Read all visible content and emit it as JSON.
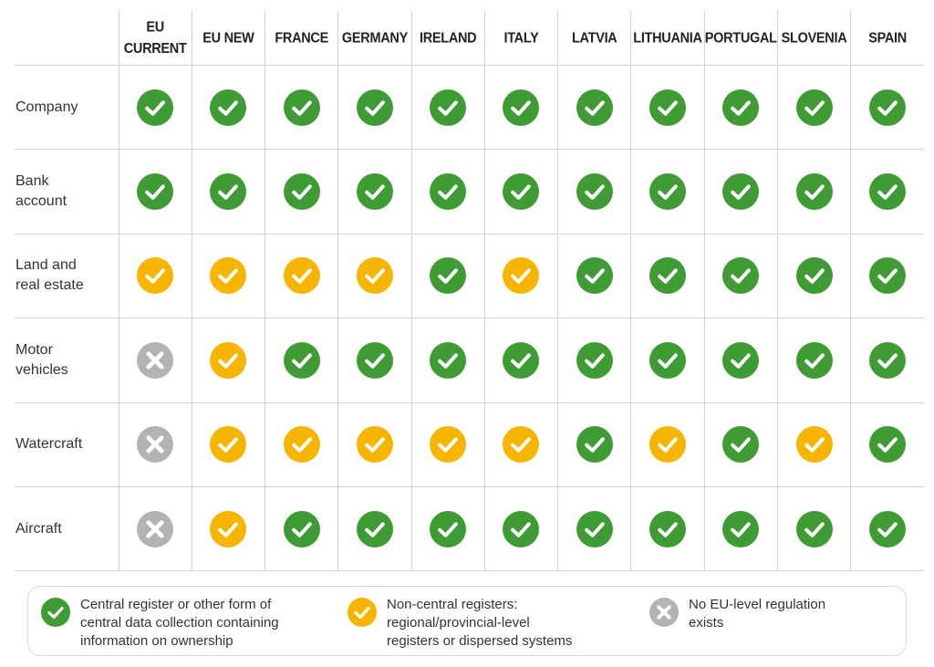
{
  "colors": {
    "central": "#3f9c35",
    "non_central": "#f7b500",
    "none": "#b3b3b3"
  },
  "columns": [
    "EU\nCURRENT",
    "EU NEW",
    "FRANCE",
    "GERMANY",
    "IRELAND",
    "ITALY",
    "LATVIA",
    "LITHUANIA",
    "PORTUGAL",
    "SLOVENIA",
    "SPAIN"
  ],
  "rows": [
    {
      "label": "Company",
      "status": [
        "central",
        "central",
        "central",
        "central",
        "central",
        "central",
        "central",
        "central",
        "central",
        "central",
        "central"
      ]
    },
    {
      "label": "Bank\naccount",
      "status": [
        "central",
        "central",
        "central",
        "central",
        "central",
        "central",
        "central",
        "central",
        "central",
        "central",
        "central"
      ]
    },
    {
      "label": "Land and\nreal estate",
      "status": [
        "non_central",
        "non_central",
        "non_central",
        "non_central",
        "central",
        "non_central",
        "central",
        "central",
        "central",
        "central",
        "central"
      ]
    },
    {
      "label": "Motor\nvehicles",
      "status": [
        "none",
        "non_central",
        "central",
        "central",
        "central",
        "central",
        "central",
        "central",
        "central",
        "central",
        "central"
      ]
    },
    {
      "label": "Watercraft",
      "status": [
        "none",
        "non_central",
        "non_central",
        "non_central",
        "non_central",
        "non_central",
        "central",
        "non_central",
        "central",
        "non_central",
        "central"
      ]
    },
    {
      "label": "Aircraft",
      "status": [
        "none",
        "non_central",
        "central",
        "central",
        "central",
        "central",
        "central",
        "central",
        "central",
        "central",
        "central"
      ]
    }
  ],
  "legend": {
    "central": "Central register or other form of\ncentral data collection containing\ninformation on ownership",
    "non_central": "Non-central registers:\nregional/provincial-level\nregisters or dispersed systems",
    "none": "No EU-level regulation\nexists"
  }
}
